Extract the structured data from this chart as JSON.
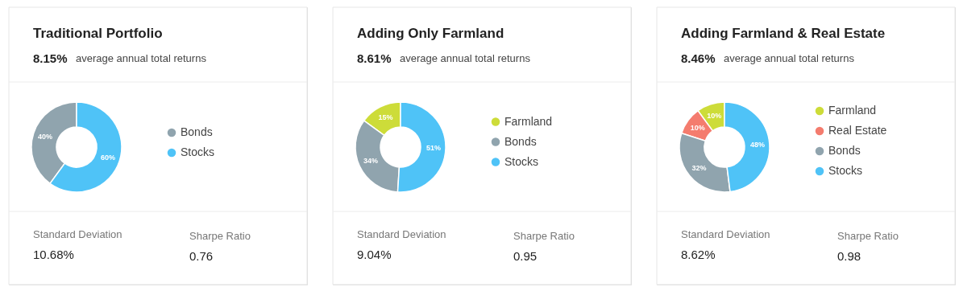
{
  "chart_data": [
    {
      "type": "donut",
      "title": "Traditional Portfolio",
      "categories": [
        "Bonds",
        "Stocks"
      ],
      "values": [
        40,
        60
      ],
      "colors": [
        "#90a4ae",
        "#4fc3f7"
      ],
      "value_labels": [
        "40%",
        "60%"
      ],
      "legend": "right",
      "annotations": [
        "8.15%",
        "average annual total returns",
        "Standard Deviation",
        "10.68%",
        "Sharpe Ratio",
        "0.76"
      ]
    },
    {
      "type": "donut",
      "title": "Adding Only Farmland",
      "categories": [
        "Farmland",
        "Bonds",
        "Stocks"
      ],
      "values": [
        15,
        34,
        51
      ],
      "colors": [
        "#cddc39",
        "#90a4ae",
        "#4fc3f7"
      ],
      "value_labels": [
        "15%",
        "34%",
        "51%"
      ],
      "legend": "right",
      "annotations": [
        "8.61%",
        "average annual total returns",
        "Standard Deviation",
        "9.04%",
        "Sharpe Ratio",
        "0.95"
      ]
    },
    {
      "type": "donut",
      "title": "Adding Farmland & Real Estate",
      "categories": [
        "Farmland",
        "Real Estate",
        "Bonds",
        "Stocks"
      ],
      "values": [
        10,
        10,
        32,
        48
      ],
      "colors": [
        "#cddc39",
        "#f47c6e",
        "#90a4ae",
        "#4fc3f7"
      ],
      "value_labels": [
        "10%",
        "10%",
        "32%",
        "48%"
      ],
      "legend": "right",
      "annotations": [
        "8.46%",
        "average annual total returns",
        "Standard Deviation",
        "8.62%",
        "Sharpe Ratio",
        "0.98"
      ]
    }
  ]
}
